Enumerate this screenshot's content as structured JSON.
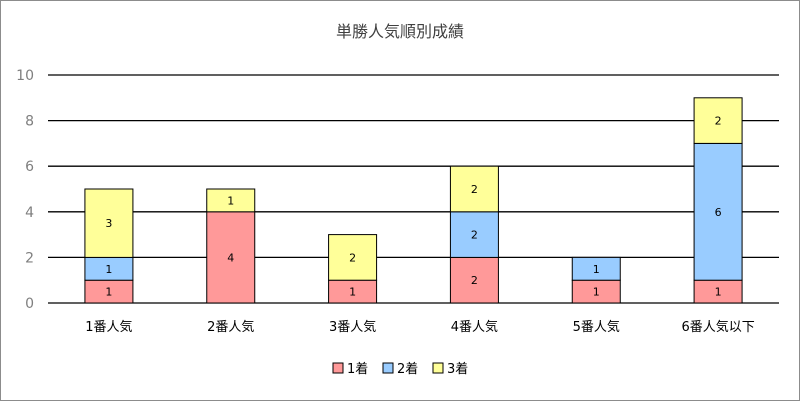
{
  "chart_data": {
    "type": "bar",
    "stacked": true,
    "title": "単勝人気順別成績",
    "xlabel": "",
    "ylabel": "",
    "categories": [
      "1番人気",
      "2番人気",
      "3番人気",
      "4番人気",
      "5番人気",
      "6番人気以下"
    ],
    "series": [
      {
        "name": "1着",
        "color": "#ff9999",
        "values": [
          1,
          4,
          1,
          2,
          1,
          1
        ]
      },
      {
        "name": "2着",
        "color": "#99ccff",
        "values": [
          1,
          0,
          0,
          2,
          1,
          6
        ]
      },
      {
        "name": "3着",
        "color": "#ffff99",
        "values": [
          3,
          1,
          2,
          2,
          0,
          2
        ]
      }
    ],
    "ylim": [
      0,
      10
    ],
    "yticks": [
      0,
      2,
      4,
      6,
      8,
      10
    ],
    "grid": true,
    "legend": "bottom"
  }
}
